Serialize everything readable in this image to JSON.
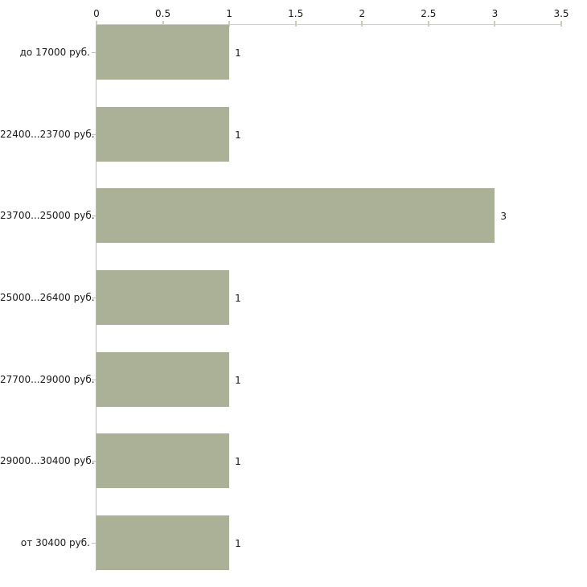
{
  "chart_data": {
    "type": "bar",
    "orientation": "horizontal",
    "title": "",
    "xlabel": "",
    "ylabel": "",
    "categories": [
      "до 17000 руб.",
      "22400...23700 руб.",
      "23700...25000 руб.",
      "25000...26400 руб.",
      "27700...29000 руб.",
      "29000...30400 руб.",
      "от 30400 руб."
    ],
    "values": [
      1,
      1,
      3,
      1,
      1,
      1,
      1
    ],
    "value_labels": [
      "1",
      "1",
      "3",
      "1",
      "1",
      "1",
      "1"
    ],
    "x_ticks": [
      "0",
      "0.5",
      "1",
      "1.5",
      "2",
      "2.5",
      "3",
      "3.5"
    ],
    "xlim": [
      0,
      3.5
    ],
    "x_axis_position": "top",
    "grid": false,
    "legend": false,
    "colors": {
      "bar_fill": "#abb197",
      "x_axis_line": "#cfcfca",
      "y_axis_line": "#b8b8b8",
      "x_tick_mark": "#cdcdb4",
      "category_tick_mark": "#c0c4ac",
      "text": "#1a1a1a",
      "background": "#ffffff"
    }
  }
}
